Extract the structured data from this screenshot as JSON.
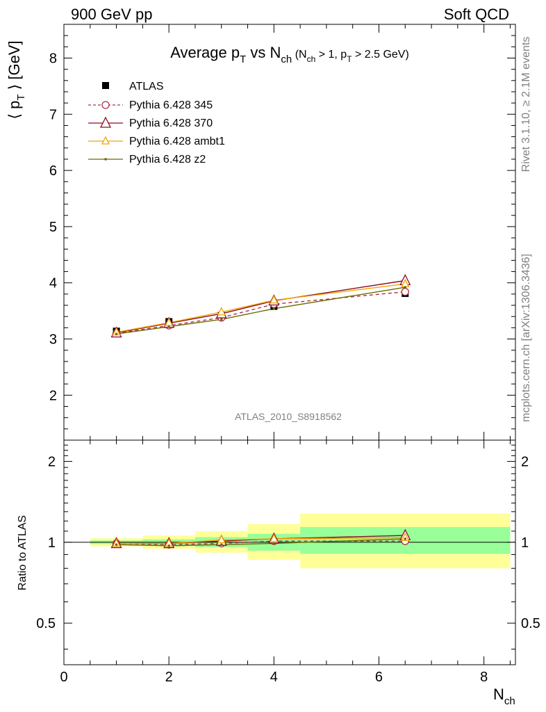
{
  "header": {
    "left": "900 GeV pp",
    "right": "Soft QCD"
  },
  "side_labels": {
    "rivet": "Rivet 3.1.10, ≥ 2.1M events",
    "mcplots": "mcplots.cern.ch [arXiv:1306.3436]"
  },
  "title": {
    "main_pre": "Average p",
    "main_pt_sub": "T",
    "main_mid": " vs N",
    "main_nch_sub": "ch",
    "cond_open": " (N",
    "cond_nch_sub": "ch",
    "cond_mid": " > 1, p",
    "cond_pt_sub": "T",
    "cond_close": " > 2.5 GeV)"
  },
  "analysis_tag": "ATLAS_2010_S8918562",
  "colors": {
    "atlas": "#000000",
    "p345": "#a83248",
    "p370": "#8b0a1e",
    "ambt1": "#f5a300",
    "z2": "#6b6b00",
    "band_inner": "#99ff99",
    "band_outer": "#ffff99",
    "secondary_text": "#808080"
  },
  "chart_data": [
    {
      "type": "line",
      "panel": "main",
      "ylabel_pre": "⟨ p",
      "ylabel_sub": "T",
      "ylabel_post": " ⟩ [GeV]",
      "xlim": [
        0,
        8.6
      ],
      "ylim": [
        1.2,
        8.6
      ],
      "yticks": [
        2,
        3,
        4,
        5,
        6,
        7,
        8
      ],
      "xticks": [
        0,
        2,
        4,
        6,
        8
      ],
      "legend_position": "top-left",
      "data": {
        "name": "ATLAS",
        "marker": "filled-square",
        "x": [
          1,
          2,
          3,
          4,
          6.5
        ],
        "y": [
          3.14,
          3.31,
          3.42,
          3.58,
          3.81
        ]
      },
      "series": [
        {
          "name": "Pythia 6.428 345",
          "style": "dashed",
          "marker": "open-circle",
          "x": [
            1,
            2,
            3,
            4,
            6.5
          ],
          "y": [
            3.1,
            3.24,
            3.38,
            3.62,
            3.84
          ]
        },
        {
          "name": "Pythia 6.428 370",
          "style": "solid",
          "marker": "open-triangle",
          "x": [
            1,
            2,
            3,
            4,
            6.5
          ],
          "y": [
            3.11,
            3.28,
            3.45,
            3.68,
            4.04
          ]
        },
        {
          "name": "Pythia 6.428 ambt1",
          "style": "solid",
          "marker": "open-triangle-small",
          "x": [
            1,
            2,
            3,
            4,
            6.5
          ],
          "y": [
            3.12,
            3.29,
            3.48,
            3.69,
            3.98
          ]
        },
        {
          "name": "Pythia 6.428 z2",
          "style": "solid",
          "marker": "dot",
          "x": [
            1,
            2,
            3,
            4,
            6.5
          ],
          "y": [
            3.09,
            3.22,
            3.35,
            3.54,
            3.92
          ]
        }
      ]
    },
    {
      "type": "line",
      "panel": "ratio",
      "ylabel": "Ratio to ATLAS",
      "xlabel_main": "N",
      "xlabel_sub": "ch",
      "xlim": [
        0,
        8.6
      ],
      "ylim": [
        0.35,
        2.4
      ],
      "yscale": "log",
      "yticks": [
        0.5,
        1,
        2
      ],
      "xticks": [
        0,
        2,
        4,
        6,
        8
      ],
      "uncertainty_bands": [
        {
          "x_lo": 0.5,
          "x_hi": 1.5,
          "inner": [
            0.985,
            1.015
          ],
          "outer": [
            0.965,
            1.035
          ]
        },
        {
          "x_lo": 1.5,
          "x_hi": 2.5,
          "inner": [
            0.975,
            1.025
          ],
          "outer": [
            0.945,
            1.06
          ]
        },
        {
          "x_lo": 2.5,
          "x_hi": 3.5,
          "inner": [
            0.96,
            1.045
          ],
          "outer": [
            0.915,
            1.1
          ]
        },
        {
          "x_lo": 3.5,
          "x_hi": 4.5,
          "inner": [
            0.93,
            1.075
          ],
          "outer": [
            0.86,
            1.17
          ]
        },
        {
          "x_lo": 4.5,
          "x_hi": 8.5,
          "inner": [
            0.905,
            1.14
          ],
          "outer": [
            0.8,
            1.28
          ]
        }
      ],
      "series": [
        {
          "name": "Pythia 6.428 345",
          "x": [
            1,
            2,
            3,
            4,
            6.5
          ],
          "y": [
            0.99,
            0.98,
            0.99,
            1.01,
            1.01
          ]
        },
        {
          "name": "Pythia 6.428 370",
          "x": [
            1,
            2,
            3,
            4,
            6.5
          ],
          "y": [
            0.99,
            0.99,
            1.01,
            1.03,
            1.06
          ]
        },
        {
          "name": "Pythia 6.428 ambt1",
          "x": [
            1,
            2,
            3,
            4,
            6.5
          ],
          "y": [
            0.99,
            0.99,
            1.02,
            1.03,
            1.04
          ]
        },
        {
          "name": "Pythia 6.428 z2",
          "x": [
            1,
            2,
            3,
            4,
            6.5
          ],
          "y": [
            0.98,
            0.97,
            0.98,
            0.99,
            1.03
          ]
        }
      ]
    }
  ]
}
